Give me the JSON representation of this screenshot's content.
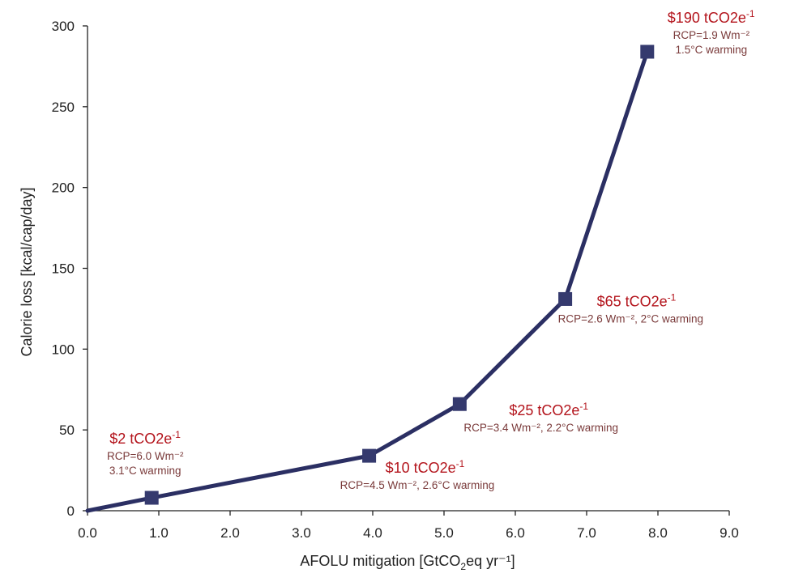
{
  "chart_data": {
    "type": "line",
    "xlabel": {
      "prefix": "AFOLU mitigation [GtCO",
      "sub": "2",
      "suffix": "eq yr⁻¹]"
    },
    "ylabel": "Calorie loss [kcal/cap/day]",
    "xlim": [
      0,
      9
    ],
    "ylim": [
      0,
      300
    ],
    "x_ticks": [
      "0.0",
      "1.0",
      "2.0",
      "3.0",
      "4.0",
      "5.0",
      "6.0",
      "7.0",
      "8.0",
      "9.0"
    ],
    "y_ticks": [
      "0",
      "50",
      "100",
      "150",
      "200",
      "250",
      "300"
    ],
    "grid": false,
    "line_color": "#2b2f63",
    "marker_color": "#353a6e",
    "price_color": "#b3131b",
    "detail_color": "#7a3a3a",
    "series": [
      {
        "points": [
          {
            "x": 0.0,
            "y": 0
          },
          {
            "x": 0.9,
            "y": 8
          },
          {
            "x": 3.95,
            "y": 34
          },
          {
            "x": 5.22,
            "y": 66
          },
          {
            "x": 6.7,
            "y": 131
          },
          {
            "x": 7.85,
            "y": 284
          }
        ]
      }
    ],
    "annotations": [
      {
        "x": 0.9,
        "y": 8,
        "price": "$2 tCO2e",
        "price_sup": "-1",
        "lines": [
          "RCP=6.0 Wm⁻²",
          "3.1°C warming"
        ]
      },
      {
        "x": 3.95,
        "y": 34,
        "price": "$10 tCO2e",
        "price_sup": "-1",
        "lines": [
          "RCP=4.5 Wm⁻², 2.6°C warming"
        ]
      },
      {
        "x": 5.22,
        "y": 66,
        "price": "$25 tCO2e",
        "price_sup": "-1",
        "lines": [
          "RCP=3.4 Wm⁻², 2.2°C warming"
        ]
      },
      {
        "x": 6.7,
        "y": 131,
        "price": "$65 tCO2e",
        "price_sup": "-1",
        "lines": [
          "RCP=2.6 Wm⁻², 2°C warming"
        ]
      },
      {
        "x": 7.85,
        "y": 284,
        "price": "$190 tCO2e",
        "price_sup": "-1",
        "lines": [
          "RCP=1.9 Wm⁻²",
          "1.5°C warming"
        ]
      }
    ]
  }
}
